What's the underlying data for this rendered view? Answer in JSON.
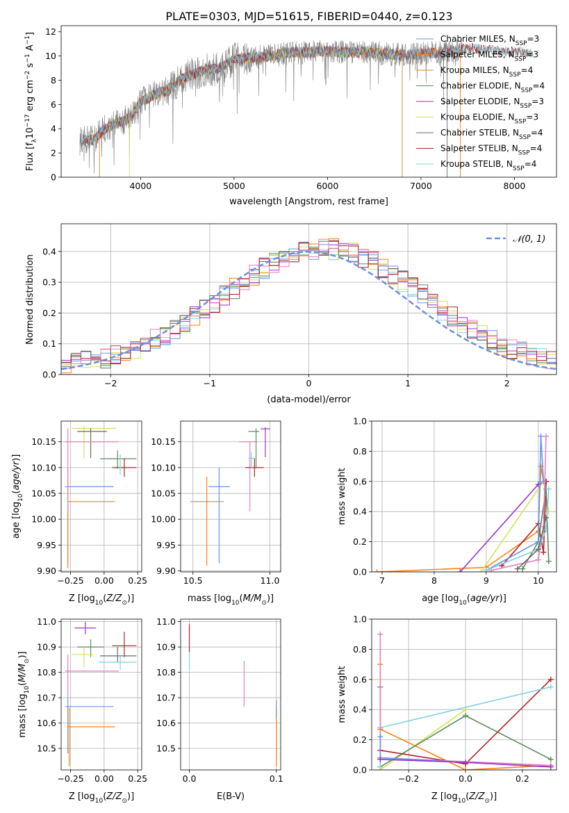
{
  "title": "PLATE=0303, MJD=51615, FIBERID=0440, z=0.123",
  "colors": {
    "chabrier_miles": "#6495ed",
    "salpeter_miles": "#ff7f0e",
    "kroupa_miles": "#d08a2a",
    "chabrier_elodie": "#5a8a5a",
    "salpeter_elodie": "#9932cc",
    "kroupa_elodie": "#d4e157",
    "chabrier_stelib": "#696969",
    "salpeter_stelib": "#b22222",
    "kroupa_stelib": "#80d0e0",
    "pink": "#e87fbf",
    "data_grey": "#808080",
    "normal_curve": "#6a8fdb",
    "grid": "#b0b0b0"
  },
  "chart_data": [
    {
      "id": "spectrum",
      "type": "line",
      "xlabel": "wavelength [Angstrom, rest frame]",
      "ylabel": "Flux [f_λ 10^-17 erg cm^-2 s^-1 A^-1]",
      "xlim": [
        3150,
        8450
      ],
      "ylim": [
        0,
        12.5
      ],
      "xticks": [
        "4000",
        "5000",
        "6000",
        "7000",
        "8000"
      ],
      "yticks": [
        "0",
        "2",
        "4",
        "6",
        "8",
        "10",
        "12"
      ],
      "legend_position": "top-right",
      "legend": [
        "Chabrier MILES, N_SSP=3",
        "Salpeter MILES, N_SSP=3",
        "Kroupa MILES, N_SSP=4",
        "Chabrier ELODIE, N_SSP=4",
        "Salpeter ELODIE, N_SSP=3",
        "Kroupa ELODIE, N_SSP=3",
        "Chabrier STELIB, N_SSP=4",
        "Salpeter STELIB, N_SSP=4",
        "Kroupa STELIB, N_SSP=4"
      ],
      "envelope": {
        "wavelength": [
          3350,
          3500,
          3600,
          3700,
          3800,
          3900,
          4000,
          4100,
          4200,
          4300,
          4400,
          4500,
          4600,
          4700,
          4800,
          4900,
          5000,
          5200,
          5400,
          5600,
          5800,
          6000,
          6200,
          6400,
          6600,
          6800,
          7000,
          7200,
          7400,
          7500,
          7700,
          7900,
          8100,
          8200
        ],
        "flux": [
          3.0,
          3.1,
          3.9,
          4.3,
          4.6,
          5.0,
          6.2,
          6.6,
          7.0,
          7.1,
          8.0,
          8.3,
          8.6,
          8.9,
          8.9,
          9.2,
          9.7,
          9.9,
          10.0,
          10.3,
          10.3,
          10.4,
          10.3,
          10.3,
          10.2,
          10.1,
          10.2,
          10.3,
          10.5,
          10.7,
          10.5,
          10.4,
          10.3,
          10.2
        ]
      }
    },
    {
      "id": "residual_histogram",
      "type": "bar",
      "xlabel": "(data-model)/error",
      "ylabel": "Normed distribution",
      "xlim": [
        -2.5,
        2.5
      ],
      "ylim": [
        0,
        0.49
      ],
      "xticks": [
        "−2",
        "−1",
        "0",
        "1",
        "2"
      ],
      "yticks": [
        "0.0",
        "0.1",
        "0.2",
        "0.3",
        "0.4"
      ],
      "legend": [
        "𝒩(0, 1)"
      ],
      "bin_width": 0.1,
      "series_count": 9
    },
    {
      "id": "age_vs_Z",
      "type": "scatter",
      "xlabel": "Z [log10(Z/Z⊙)]",
      "ylabel": "age  [log10(age/yr)]",
      "xlim": [
        -0.32,
        0.28
      ],
      "ylim": [
        9.898,
        10.19
      ],
      "xticks": [
        "−0.25",
        "0.00",
        "0.25"
      ],
      "yticks": [
        "9.90",
        "9.95",
        "10.00",
        "10.05",
        "10.10",
        "10.15"
      ],
      "points": [
        {
          "x": -0.27,
          "y": 10.063,
          "xerr": 0.07,
          "yerr": 0.04,
          "color": "chabrier_miles",
          "xlo": -0.29,
          "xhi": 0.07,
          "ylo": 9.915,
          "yhi": 10.1
        },
        {
          "x": -0.27,
          "y": 10.034,
          "color": "salpeter_miles",
          "xlo": -0.27,
          "xhi": 0.08,
          "ylo": 9.905,
          "yhi": 10.082
        },
        {
          "x": -0.15,
          "y": 10.176,
          "color": "kroupa_elodie",
          "xlo": -0.24,
          "xhi": 0.09,
          "ylo": 10.118,
          "yhi": 10.18
        },
        {
          "x": -0.1,
          "y": 10.17,
          "color": "chabrier_stelib",
          "xlo": -0.2,
          "xhi": 0.02,
          "ylo": 10.118,
          "yhi": 10.176
        },
        {
          "x": 0.1,
          "y": 10.117,
          "color": "chabrier_elodie",
          "xlo": -0.03,
          "xhi": 0.24,
          "ylo": 10.098,
          "yhi": 10.133
        },
        {
          "x": 0.15,
          "y": 10.1,
          "color": "salpeter_stelib",
          "xlo": 0.06,
          "xhi": 0.24,
          "ylo": 10.082,
          "yhi": 10.118
        },
        {
          "x": 0.12,
          "y": 10.108,
          "color": "kroupa_stelib",
          "xlo": 0.12,
          "xhi": 0.12,
          "ylo": 10.086,
          "yhi": 10.126
        },
        {
          "x": -0.27,
          "y": 10.15,
          "color": "pink",
          "xlo": -0.29,
          "xhi": 0.11,
          "ylo": 10.015,
          "yhi": 10.176
        }
      ]
    },
    {
      "id": "age_vs_mass",
      "type": "scatter",
      "xlabel": "mass [log10(M/M⊙)]",
      "ylabel": "",
      "xlim": [
        10.42,
        11.07
      ],
      "ylim": [
        9.898,
        10.19
      ],
      "xticks": [
        "10.5",
        "11.0"
      ],
      "yticks": [
        "9.90",
        "9.95",
        "10.00",
        "10.05",
        "10.10",
        "10.15"
      ],
      "points": [
        {
          "x": 10.67,
          "y": 10.063,
          "color": "chabrier_miles",
          "xlo": 10.6,
          "xhi": 10.74,
          "ylo": 9.915,
          "yhi": 10.1
        },
        {
          "x": 10.59,
          "y": 10.034,
          "color": "salpeter_miles",
          "xlo": 10.48,
          "xhi": 10.7,
          "ylo": 9.91,
          "yhi": 10.082
        },
        {
          "x": 10.87,
          "y": 10.15,
          "color": "pink",
          "xlo": 10.8,
          "xhi": 10.92,
          "ylo": 10.015,
          "yhi": 10.15
        },
        {
          "x": 10.9,
          "y": 10.1,
          "color": "salpeter_stelib",
          "xlo": 10.84,
          "xhi": 10.96,
          "ylo": 10.082,
          "yhi": 10.118
        },
        {
          "x": 10.91,
          "y": 10.17,
          "color": "chabrier_elodie",
          "xlo": 10.86,
          "xhi": 10.93,
          "ylo": 10.098,
          "yhi": 10.176
        },
        {
          "x": 10.97,
          "y": 10.175,
          "color": "salpeter_elodie",
          "xlo": 10.94,
          "xhi": 11.0,
          "ylo": 10.12,
          "yhi": 10.178
        },
        {
          "x": 10.88,
          "y": 10.118,
          "color": "kroupa_stelib",
          "xlo": 10.86,
          "xhi": 10.9,
          "ylo": 10.098,
          "yhi": 10.13
        }
      ]
    },
    {
      "id": "weight_vs_age",
      "type": "line",
      "xlabel": "age  [log10(age/yr)]",
      "ylabel": "mass weight",
      "xlim": [
        6.8,
        10.35
      ],
      "ylim": [
        0,
        1.0
      ],
      "xticks": [
        "7",
        "8",
        "9",
        "10"
      ],
      "yticks": [
        "0.0",
        "0.2",
        "0.4",
        "0.6",
        "0.8",
        "1.0"
      ],
      "series": [
        {
          "color": "salpeter_miles",
          "x": [
            6.9,
            9.0,
            10.0,
            10.05,
            10.1
          ],
          "y": [
            0.0,
            0.03,
            0.27,
            0.7,
            0.6
          ]
        },
        {
          "color": "salpeter_elodie",
          "x": [
            8.5,
            10.0,
            10.15
          ],
          "y": [
            0.0,
            0.58,
            0.6
          ]
        },
        {
          "color": "kroupa_elodie",
          "x": [
            8.9,
            10.1,
            10.2
          ],
          "y": [
            0.0,
            0.6,
            0.4
          ]
        },
        {
          "color": "salpeter_stelib",
          "x": [
            9.3,
            10.0,
            10.1,
            10.15
          ],
          "y": [
            0.04,
            0.32,
            0.13,
            0.6
          ]
        },
        {
          "color": "chabrier_elodie",
          "x": [
            9.7,
            10.0,
            10.15,
            10.2
          ],
          "y": [
            0.02,
            0.2,
            0.55,
            0.07
          ]
        },
        {
          "color": "chabrier_miles",
          "x": [
            9.0,
            10.0,
            10.05,
            10.1
          ],
          "y": [
            0.01,
            0.2,
            0.9,
            0.6
          ]
        },
        {
          "color": "pink",
          "x": [
            9.1,
            10.0,
            10.1,
            10.15
          ],
          "y": [
            0.01,
            0.08,
            0.3,
            0.9
          ]
        },
        {
          "color": "kroupa_stelib",
          "x": [
            9.0,
            10.0,
            10.15,
            10.2
          ],
          "y": [
            0.01,
            0.15,
            0.28,
            0.55
          ]
        },
        {
          "color": "chabrier_stelib",
          "x": [
            9.6,
            10.0,
            10.15
          ],
          "y": [
            0.02,
            0.15,
            0.36
          ]
        }
      ]
    },
    {
      "id": "mass_vs_Z",
      "type": "scatter",
      "xlabel": "Z [log10(Z/Z⊙)]",
      "ylabel": "mass [log10(M/M⊙)]",
      "xlim": [
        -0.32,
        0.28
      ],
      "ylim": [
        10.415,
        11.01
      ],
      "xticks": [
        "−0.25",
        "0.00",
        "0.25"
      ],
      "yticks": [
        "10.5",
        "10.6",
        "10.7",
        "10.8",
        "10.9",
        "11.0"
      ],
      "points": [
        {
          "x": -0.14,
          "y": 10.975,
          "color": "salpeter_elodie",
          "xlo": -0.22,
          "xhi": -0.06,
          "ylo": 10.95,
          "yhi": 11.0
        },
        {
          "x": -0.1,
          "y": 10.9,
          "color": "chabrier_elodie",
          "xlo": -0.2,
          "xhi": 0.0,
          "ylo": 10.86,
          "yhi": 10.93
        },
        {
          "x": -0.15,
          "y": 10.87,
          "color": "kroupa_elodie",
          "xlo": -0.24,
          "xhi": -0.08,
          "ylo": 10.82,
          "yhi": 10.9
        },
        {
          "x": 0.15,
          "y": 10.905,
          "color": "salpeter_stelib",
          "xlo": 0.06,
          "xhi": 0.24,
          "ylo": 10.86,
          "yhi": 10.96
        },
        {
          "x": 0.1,
          "y": 10.865,
          "color": "chabrier_stelib",
          "xlo": -0.03,
          "xhi": 0.24,
          "ylo": 10.84,
          "yhi": 10.9
        },
        {
          "x": 0.12,
          "y": 10.84,
          "color": "kroupa_stelib",
          "xlo": -0.04,
          "xhi": 0.24,
          "ylo": 10.81,
          "yhi": 10.87
        },
        {
          "x": -0.27,
          "y": 10.805,
          "color": "pink",
          "xlo": -0.29,
          "xhi": 0.11,
          "ylo": 10.69,
          "yhi": 10.87
        },
        {
          "x": -0.27,
          "y": 10.665,
          "color": "chabrier_miles",
          "xlo": -0.29,
          "xhi": 0.07,
          "ylo": 10.48,
          "yhi": 10.7
        },
        {
          "x": -0.26,
          "y": 10.585,
          "color": "salpeter_miles",
          "xlo": -0.27,
          "xhi": 0.08,
          "ylo": 10.43,
          "yhi": 10.66
        }
      ]
    },
    {
      "id": "mass_vs_ebv",
      "type": "scatter",
      "xlabel": "E(B-V)",
      "ylabel": "",
      "xlim": [
        -0.01,
        0.105
      ],
      "ylim": [
        10.415,
        11.01
      ],
      "xticks": [
        "0.0",
        "0.1"
      ],
      "yticks": [
        "10.5",
        "10.6",
        "10.7",
        "10.8",
        "10.9",
        "11.0"
      ],
      "points": [
        {
          "x": 0.0,
          "y": 10.93,
          "color": "salpeter_stelib",
          "ylo": 10.88,
          "yhi": 10.99
        },
        {
          "x": 0.0,
          "y": 10.85,
          "color": "kroupa_stelib",
          "ylo": 10.81,
          "yhi": 10.88
        },
        {
          "x": 0.063,
          "y": 10.74,
          "color": "pink",
          "ylo": 10.665,
          "yhi": 10.845
        },
        {
          "x": 0.1,
          "y": 10.6,
          "color": "salpeter_miles",
          "ylo": 10.43,
          "yhi": 10.66
        },
        {
          "x": 0.1,
          "y": 10.66,
          "color": "chabrier_miles",
          "ylo": 10.62,
          "yhi": 10.69
        }
      ]
    },
    {
      "id": "weight_vs_Z",
      "type": "line",
      "xlabel": "Z [log10(Z/Z⊙)]",
      "ylabel": "mass weight",
      "xlim": [
        -0.33,
        0.32
      ],
      "ylim": [
        0,
        1.0
      ],
      "xticks": [
        "−0.2",
        "0.0",
        "0.2"
      ],
      "yticks": [
        "0.0",
        "0.2",
        "0.4",
        "0.6",
        "0.8",
        "1.0"
      ],
      "series": [
        {
          "color": "salpeter_miles",
          "x": [
            -0.3,
            -0.3,
            0.0,
            0.3
          ],
          "y": [
            0.7,
            0.27,
            0.0,
            0.03
          ]
        },
        {
          "color": "kroupa_elodie",
          "x": [
            -0.3,
            -0.3,
            0.0,
            0.0
          ],
          "y": [
            0.6,
            0.0,
            0.4,
            0.4
          ]
        },
        {
          "color": "chabrier_elodie",
          "x": [
            -0.3,
            -0.3,
            0.0,
            0.3
          ],
          "y": [
            0.55,
            0.02,
            0.36,
            0.07
          ]
        },
        {
          "color": "salpeter_stelib",
          "x": [
            -0.3,
            0.0,
            0.3
          ],
          "y": [
            0.13,
            0.04,
            0.6
          ]
        },
        {
          "color": "kroupa_stelib",
          "x": [
            -0.3,
            -0.3,
            0.3
          ],
          "y": [
            0.02,
            0.28,
            0.55
          ]
        },
        {
          "color": "pink",
          "x": [
            -0.3,
            -0.3,
            0.3
          ],
          "y": [
            0.9,
            0.08,
            0.03
          ]
        },
        {
          "color": "chabrier_miles",
          "x": [
            -0.3,
            -0.3,
            0.3
          ],
          "y": [
            0.22,
            0.08,
            0.02
          ]
        },
        {
          "color": "salpeter_elodie",
          "x": [
            -0.3,
            0.0,
            0.3
          ],
          "y": [
            0.07,
            0.05,
            0.02
          ]
        }
      ]
    }
  ]
}
